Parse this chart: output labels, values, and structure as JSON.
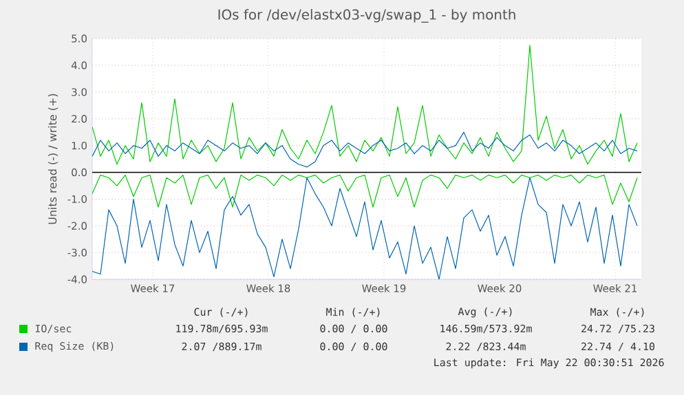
{
  "chart_data": {
    "type": "line",
    "title": "IOs for /dev/elastx03-vg/swap_1 - by month",
    "ylabel": "Units read (-) / write (+)",
    "x": [
      "2026-04-18T18:00",
      "2026-04-19T06:00",
      "2026-04-19T18:00",
      "2026-04-20T06:00",
      "2026-04-20T18:00",
      "2026-04-21T06:00",
      "2026-04-21T18:00",
      "2026-04-22T06:00",
      "2026-04-22T18:00",
      "2026-04-23T06:00",
      "2026-04-23T18:00",
      "2026-04-24T06:00",
      "2026-04-24T18:00",
      "2026-04-25T06:00",
      "2026-04-25T18:00",
      "2026-04-26T06:00",
      "2026-04-26T18:00",
      "2026-04-27T06:00",
      "2026-04-27T18:00",
      "2026-04-28T06:00",
      "2026-04-28T18:00",
      "2026-04-29T06:00",
      "2026-04-29T18:00",
      "2026-04-30T06:00",
      "2026-04-30T18:00",
      "2026-05-01T06:00",
      "2026-05-01T18:00",
      "2026-05-02T06:00",
      "2026-05-02T18:00",
      "2026-05-03T06:00",
      "2026-05-03T18:00",
      "2026-05-04T06:00",
      "2026-05-04T18:00",
      "2026-05-05T06:00",
      "2026-05-05T18:00",
      "2026-05-06T06:00",
      "2026-05-06T18:00",
      "2026-05-07T06:00",
      "2026-05-07T18:00",
      "2026-05-08T06:00",
      "2026-05-08T18:00",
      "2026-05-09T06:00",
      "2026-05-09T18:00",
      "2026-05-10T06:00",
      "2026-05-10T18:00",
      "2026-05-11T06:00",
      "2026-05-11T18:00",
      "2026-05-12T06:00",
      "2026-05-12T18:00",
      "2026-05-13T06:00",
      "2026-05-13T18:00",
      "2026-05-14T06:00",
      "2026-05-14T18:00",
      "2026-05-15T06:00",
      "2026-05-15T18:00",
      "2026-05-16T06:00",
      "2026-05-16T18:00",
      "2026-05-17T06:00",
      "2026-05-17T18:00",
      "2026-05-18T06:00",
      "2026-05-18T18:00",
      "2026-05-19T06:00",
      "2026-05-19T18:00",
      "2026-05-20T06:00",
      "2026-05-20T18:00",
      "2026-05-21T06:00",
      "2026-05-21T18:00"
    ],
    "xlim": [
      "2026-04-18T18:00",
      "2026-05-22T00:00"
    ],
    "xticks": [
      {
        "value": "2026-04-22T10:00",
        "label": "Week 17"
      },
      {
        "value": "2026-04-29T10:00",
        "label": "Week 18"
      },
      {
        "value": "2026-05-06T10:00",
        "label": "Week 19"
      },
      {
        "value": "2026-05-13T10:00",
        "label": "Week 20"
      },
      {
        "value": "2026-05-20T10:00",
        "label": "Week 21"
      }
    ],
    "ylim": [
      -4,
      5
    ],
    "yticks": [
      {
        "value": -4,
        "label": "-4.0"
      },
      {
        "value": -3,
        "label": "-3.0"
      },
      {
        "value": -2,
        "label": "-2.0"
      },
      {
        "value": -1,
        "label": "-1.0"
      },
      {
        "value": 0,
        "label": "0.0"
      },
      {
        "value": 1,
        "label": "1.0"
      },
      {
        "value": 2,
        "label": "2.0"
      },
      {
        "value": 3,
        "label": "3.0"
      },
      {
        "value": 4,
        "label": "4.0"
      },
      {
        "value": 5,
        "label": "5.0"
      }
    ],
    "grid": true,
    "legend": "bottom",
    "ref_lines": [
      {
        "axis": "y",
        "value": 0,
        "color": "#000000"
      }
    ],
    "series": [
      {
        "name": "IO/sec",
        "color": "#00cc00",
        "values": [
          1.7,
          0.6,
          1.2,
          0.3,
          1.0,
          0.5,
          2.6,
          0.4,
          1.1,
          0.6,
          2.75,
          0.5,
          1.2,
          0.7,
          1.0,
          0.4,
          0.9,
          2.6,
          0.5,
          1.3,
          0.8,
          1.1,
          0.6,
          1.6,
          0.9,
          0.5,
          1.2,
          0.7,
          1.5,
          2.5,
          0.6,
          1.0,
          0.4,
          1.2,
          0.8,
          1.3,
          0.6,
          2.45,
          0.7,
          1.1,
          2.5,
          0.6,
          1.4,
          0.9,
          0.5,
          1.1,
          0.7,
          1.3,
          0.6,
          1.5,
          0.9,
          0.4,
          0.8,
          4.75,
          1.2,
          2.1,
          0.9,
          1.6,
          0.5,
          1.0,
          0.3,
          0.8,
          1.2,
          0.6,
          2.2,
          0.4,
          1.1
        ]
      },
      {
        "name": "Req Size (KB)",
        "color": "#0066b3",
        "values": [
          0.6,
          1.2,
          0.8,
          1.1,
          0.7,
          1.0,
          0.9,
          1.2,
          0.6,
          1.0,
          0.8,
          1.1,
          0.9,
          0.7,
          1.2,
          1.0,
          0.8,
          1.1,
          0.9,
          1.0,
          0.7,
          1.1,
          0.8,
          1.0,
          0.5,
          0.3,
          0.2,
          0.4,
          1.0,
          1.2,
          0.8,
          1.1,
          0.9,
          0.7,
          1.0,
          1.2,
          0.8,
          0.9,
          1.1,
          0.7,
          1.0,
          0.8,
          1.2,
          0.9,
          1.0,
          1.5,
          0.8,
          1.1,
          0.9,
          1.3,
          1.0,
          0.8,
          1.2,
          1.4,
          0.9,
          1.1,
          0.8,
          1.2,
          1.0,
          0.7,
          0.9,
          1.1,
          0.8,
          1.2,
          0.7,
          0.9,
          0.8
        ]
      },
      {
        "color": "#00cc00",
        "values": [
          -0.8,
          -0.1,
          -0.2,
          -0.5,
          -0.1,
          -0.9,
          -0.2,
          -0.1,
          -1.3,
          -0.2,
          -0.4,
          -0.1,
          -1.2,
          -0.2,
          -0.1,
          -0.6,
          -0.2,
          -1.3,
          -0.1,
          -0.3,
          -0.1,
          -0.2,
          -0.5,
          -0.1,
          -0.3,
          -0.1,
          -0.2,
          -0.1,
          -0.4,
          -0.2,
          -0.1,
          -0.7,
          -0.2,
          -0.1,
          -1.3,
          -0.2,
          -0.1,
          -0.9,
          -0.2,
          -1.3,
          -0.3,
          -0.1,
          -0.2,
          -0.6,
          -0.1,
          -0.2,
          -0.1,
          -0.3,
          -0.1,
          -0.2,
          -0.1,
          -0.4,
          -0.1,
          -0.2,
          -0.1,
          -0.3,
          -0.1,
          -0.2,
          -0.1,
          -0.4,
          -0.1,
          -0.2,
          -0.1,
          -1.2,
          -0.4,
          -1.1,
          -0.2
        ]
      },
      {
        "color": "#0066b3",
        "values": [
          -3.7,
          -3.8,
          -1.4,
          -2.0,
          -3.4,
          -1.0,
          -2.8,
          -1.8,
          -3.3,
          -1.2,
          -2.7,
          -3.5,
          -1.8,
          -3.0,
          -2.2,
          -3.6,
          -1.4,
          -0.9,
          -1.6,
          -1.2,
          -2.3,
          -2.8,
          -3.9,
          -2.5,
          -3.6,
          -2.1,
          -0.2,
          -0.8,
          -1.3,
          -2.0,
          -0.6,
          -1.5,
          -2.4,
          -1.1,
          -2.9,
          -1.8,
          -3.2,
          -2.6,
          -3.8,
          -2.0,
          -3.4,
          -2.8,
          -4.0,
          -2.4,
          -3.6,
          -1.7,
          -1.4,
          -2.2,
          -1.6,
          -3.1,
          -2.4,
          -3.5,
          -1.6,
          -0.2,
          -1.2,
          -1.5,
          -3.4,
          -1.2,
          -2.0,
          -1.1,
          -2.6,
          -1.3,
          -3.4,
          -1.6,
          -3.5,
          -1.2,
          -2.0
        ]
      }
    ],
    "annotations": [
      "Cur (-/+)",
      "Min (-/+)",
      "Avg (-/+)",
      "Max (-/+)",
      "119.78m/695.93m",
      "0.00 / 0.00",
      "146.59m/573.92m",
      "24.72 /75.23",
      "2.07 /889.17m",
      "0.00 / 0.00",
      "2.22 /823.44m",
      "22.74 / 4.10",
      "Last update: Fri May 22 00:30:51 2026"
    ]
  }
}
